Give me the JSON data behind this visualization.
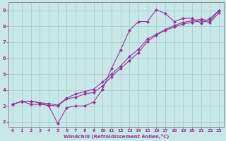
{
  "xlabel": "Windchill (Refroidissement éolien,°C)",
  "bg_color": "#c8e8e8",
  "line_color": "#993399",
  "grid_color": "#a0c8c8",
  "spine_color": "#888899",
  "xlim": [
    -0.5,
    23.5
  ],
  "ylim": [
    1.7,
    9.5
  ],
  "xticks": [
    0,
    1,
    2,
    3,
    4,
    5,
    6,
    7,
    8,
    9,
    10,
    11,
    12,
    13,
    14,
    15,
    16,
    17,
    18,
    19,
    20,
    21,
    22,
    23
  ],
  "yticks": [
    2,
    3,
    4,
    5,
    6,
    7,
    8,
    9
  ],
  "line1_x": [
    0,
    1,
    2,
    3,
    4,
    5,
    6,
    7,
    8,
    9,
    10,
    11,
    12,
    13,
    14,
    15,
    16,
    17,
    18,
    19,
    20,
    21,
    22,
    23
  ],
  "line1_y": [
    3.1,
    3.3,
    3.3,
    3.2,
    3.0,
    1.9,
    2.9,
    3.0,
    3.0,
    3.25,
    4.05,
    5.35,
    6.5,
    7.75,
    8.3,
    8.3,
    9.05,
    8.8,
    8.3,
    8.5,
    8.5,
    8.2,
    8.5,
    9.0
  ],
  "line2_x": [
    0,
    1,
    2,
    3,
    4,
    5,
    6,
    7,
    8,
    9,
    10,
    11,
    12,
    13,
    14,
    15,
    16,
    17,
    18,
    19,
    20,
    21,
    22,
    23
  ],
  "line2_y": [
    3.1,
    3.3,
    3.3,
    3.2,
    3.15,
    3.05,
    3.5,
    3.75,
    3.9,
    4.05,
    4.5,
    5.0,
    5.5,
    6.1,
    6.55,
    7.2,
    7.5,
    7.8,
    8.05,
    8.25,
    8.35,
    8.45,
    8.35,
    9.0
  ],
  "line3_x": [
    0,
    1,
    2,
    3,
    4,
    5,
    6,
    7,
    8,
    9,
    10,
    11,
    12,
    13,
    14,
    15,
    16,
    17,
    18,
    19,
    20,
    21,
    22,
    23
  ],
  "line3_y": [
    3.1,
    3.3,
    3.1,
    3.1,
    3.05,
    3.0,
    3.45,
    3.55,
    3.75,
    3.85,
    4.25,
    4.85,
    5.35,
    5.85,
    6.35,
    7.05,
    7.45,
    7.75,
    7.95,
    8.15,
    8.25,
    8.35,
    8.25,
    8.85
  ]
}
